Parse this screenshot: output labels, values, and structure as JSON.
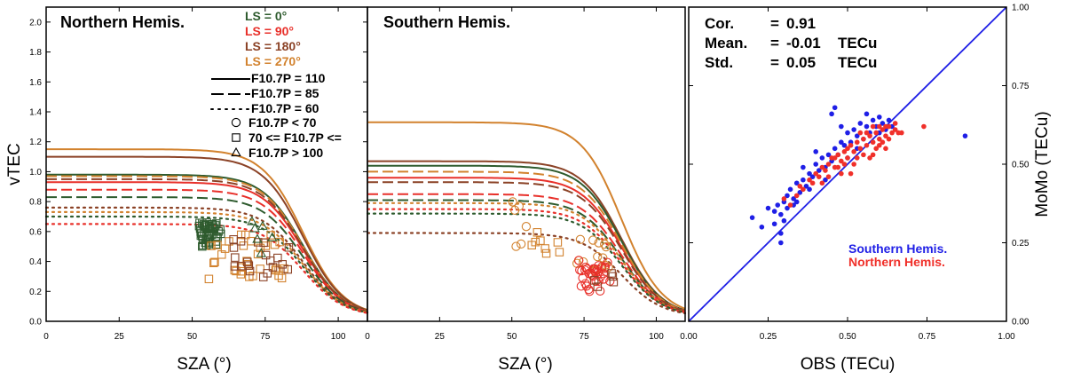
{
  "chart_data": [
    {
      "type": "line",
      "title": "Northern Hemis.",
      "xlabel": "SZA (°)",
      "ylabel": "vTEC",
      "xlim": [
        0,
        110
      ],
      "ylim": [
        0,
        2.1
      ],
      "x_ticks": [
        "0",
        "25",
        "50",
        "75",
        "100"
      ],
      "y_ticks": [
        "0.0",
        "0.2",
        "0.4",
        "0.6",
        "0.8",
        "1.0",
        "1.2",
        "1.4",
        "1.6",
        "1.8",
        "2.0"
      ],
      "legend": {
        "ls_entries": [
          {
            "label": "LS = 0°",
            "color": "#2e5b2e"
          },
          {
            "label": "LS = 90°",
            "color": "#e8302a"
          },
          {
            "label": "LS = 180°",
            "color": "#8b4226"
          },
          {
            "label": "LS = 270°",
            "color": "#d2822e"
          }
        ],
        "line_entries": [
          {
            "label": "F10.7P = 110",
            "dash": "solid"
          },
          {
            "label": "F10.7P = 85",
            "dash": "dashed"
          },
          {
            "label": "F10.7P = 60",
            "dash": "dotted"
          }
        ],
        "marker_entries": [
          {
            "label": "F10.7P < 70",
            "marker": "circle"
          },
          {
            "label": "70 <= F10.7P <=",
            "marker": "square"
          },
          {
            "label": "F10.7P >   100",
            "marker": "triangle"
          }
        ]
      },
      "curves": [
        {
          "ls": 270,
          "f107": 110,
          "v0": 1.15
        },
        {
          "ls": 180,
          "f107": 110,
          "v0": 1.1
        },
        {
          "ls": 0,
          "f107": 110,
          "v0": 0.98
        },
        {
          "ls": 90,
          "f107": 110,
          "v0": 0.93
        },
        {
          "ls": 270,
          "f107": 85,
          "v0": 0.97
        },
        {
          "ls": 180,
          "f107": 85,
          "v0": 0.95
        },
        {
          "ls": 90,
          "f107": 85,
          "v0": 0.88
        },
        {
          "ls": 0,
          "f107": 85,
          "v0": 0.83
        },
        {
          "ls": 180,
          "f107": 60,
          "v0": 0.76
        },
        {
          "ls": 270,
          "f107": 60,
          "v0": 0.73
        },
        {
          "ls": 0,
          "f107": 60,
          "v0": 0.7
        },
        {
          "ls": 90,
          "f107": 60,
          "v0": 0.65
        }
      ],
      "observation_clusters": [
        {
          "ls": 0,
          "marker": "square",
          "sza_range": [
            52,
            60
          ],
          "vtec_range": [
            0.5,
            0.66
          ],
          "count": 45
        },
        {
          "ls": 270,
          "marker": "square",
          "sza_range": [
            55,
            82
          ],
          "vtec_range": [
            0.28,
            0.58
          ],
          "count": 35
        },
        {
          "ls": 180,
          "marker": "square",
          "sza_range": [
            64,
            84
          ],
          "vtec_range": [
            0.28,
            0.55
          ],
          "count": 20
        },
        {
          "ls": 0,
          "marker": "triangle",
          "sza_range": [
            70,
            78
          ],
          "vtec_range": [
            0.45,
            0.7
          ],
          "count": 6
        }
      ]
    },
    {
      "type": "line",
      "title": "Southern Hemis.",
      "xlabel": "SZA (°)",
      "xlim": [
        0,
        110
      ],
      "ylim": [
        0,
        2.1
      ],
      "x_ticks": [
        "0",
        "25",
        "50",
        "75",
        "100"
      ],
      "curves": [
        {
          "ls": 270,
          "f107": 110,
          "v0": 1.33
        },
        {
          "ls": 180,
          "f107": 110,
          "v0": 1.07
        },
        {
          "ls": 0,
          "f107": 110,
          "v0": 1.04
        },
        {
          "ls": 90,
          "f107": 110,
          "v0": 0.96
        },
        {
          "ls": 270,
          "f107": 85,
          "v0": 1.0
        },
        {
          "ls": 180,
          "f107": 85,
          "v0": 0.93
        },
        {
          "ls": 90,
          "f107": 85,
          "v0": 0.85
        },
        {
          "ls": 0,
          "f107": 85,
          "v0": 0.81
        },
        {
          "ls": 270,
          "f107": 60,
          "v0": 0.79
        },
        {
          "ls": 90,
          "f107": 60,
          "v0": 0.75
        },
        {
          "ls": 0,
          "f107": 60,
          "v0": 0.72
        },
        {
          "ls": 180,
          "f107": 60,
          "v0": 0.59
        }
      ],
      "observation_clusters": [
        {
          "ls": 270,
          "marker": "circle",
          "sza_range": [
            50,
            56
          ],
          "vtec_range": [
            0.5,
            0.86
          ],
          "count": 6
        },
        {
          "ls": 270,
          "marker": "square",
          "sza_range": [
            56,
            72
          ],
          "vtec_range": [
            0.42,
            0.6
          ],
          "count": 8
        },
        {
          "ls": 270,
          "marker": "circle",
          "sza_range": [
            72,
            84
          ],
          "vtec_range": [
            0.3,
            0.55
          ],
          "count": 15
        },
        {
          "ls": 90,
          "marker": "circle",
          "sza_range": [
            73,
            84
          ],
          "vtec_range": [
            0.2,
            0.42
          ],
          "count": 35
        },
        {
          "ls": 180,
          "marker": "square",
          "sza_range": [
            78,
            86
          ],
          "vtec_range": [
            0.22,
            0.35
          ],
          "count": 5
        }
      ]
    },
    {
      "type": "scatter",
      "xlabel": "OBS (TECu)",
      "ylabel": "MoMo (TECu)",
      "xlim": [
        0,
        1
      ],
      "ylim": [
        0,
        1
      ],
      "x_ticks": [
        "0.00",
        "0.25",
        "0.50",
        "0.75",
        "1.00"
      ],
      "y_ticks": [
        "0.00",
        "0.25",
        "0.50",
        "0.75",
        "1.00"
      ],
      "stats": [
        {
          "name": "Cor.",
          "eq": "=",
          "value": "0.91",
          "unit": ""
        },
        {
          "name": "Mean.",
          "eq": "=",
          "value": "-0.01",
          "unit": "TECu"
        },
        {
          "name": "Std.",
          "eq": "=",
          "value": "0.05",
          "unit": "TECu"
        }
      ],
      "legend": [
        {
          "label": "Southern Hemis.",
          "color": "#1f1fe6"
        },
        {
          "label": "Northern Hemis.",
          "color": "#f0302a"
        }
      ],
      "identity_line": {
        "color": "#1f1fe6"
      },
      "series": [
        {
          "name": "Southern Hemis.",
          "color": "#1f1fe6",
          "points": [
            [
              0.2,
              0.33
            ],
            [
              0.23,
              0.3
            ],
            [
              0.25,
              0.36
            ],
            [
              0.27,
              0.35
            ],
            [
              0.27,
              0.31
            ],
            [
              0.28,
              0.37
            ],
            [
              0.29,
              0.34
            ],
            [
              0.29,
              0.28
            ],
            [
              0.3,
              0.38
            ],
            [
              0.31,
              0.4
            ],
            [
              0.31,
              0.36
            ],
            [
              0.32,
              0.42
            ],
            [
              0.33,
              0.39
            ],
            [
              0.34,
              0.44
            ],
            [
              0.35,
              0.41
            ],
            [
              0.36,
              0.45
            ],
            [
              0.37,
              0.43
            ],
            [
              0.38,
              0.47
            ],
            [
              0.39,
              0.46
            ],
            [
              0.4,
              0.5
            ],
            [
              0.41,
              0.48
            ],
            [
              0.42,
              0.52
            ],
            [
              0.43,
              0.49
            ],
            [
              0.44,
              0.53
            ],
            [
              0.45,
              0.51
            ],
            [
              0.46,
              0.55
            ],
            [
              0.47,
              0.53
            ],
            [
              0.48,
              0.57
            ],
            [
              0.49,
              0.56
            ],
            [
              0.5,
              0.6
            ],
            [
              0.51,
              0.57
            ],
            [
              0.52,
              0.61
            ],
            [
              0.53,
              0.59
            ],
            [
              0.54,
              0.63
            ],
            [
              0.55,
              0.58
            ],
            [
              0.56,
              0.62
            ],
            [
              0.57,
              0.6
            ],
            [
              0.58,
              0.64
            ],
            [
              0.59,
              0.62
            ],
            [
              0.6,
              0.65
            ],
            [
              0.61,
              0.63
            ],
            [
              0.62,
              0.61
            ],
            [
              0.63,
              0.64
            ],
            [
              0.45,
              0.66
            ],
            [
              0.46,
              0.68
            ],
            [
              0.48,
              0.62
            ],
            [
              0.4,
              0.54
            ],
            [
              0.36,
              0.49
            ],
            [
              0.33,
              0.37
            ],
            [
              0.3,
              0.32
            ],
            [
              0.29,
              0.25
            ],
            [
              0.43,
              0.45
            ],
            [
              0.5,
              0.52
            ],
            [
              0.53,
              0.55
            ],
            [
              0.38,
              0.42
            ],
            [
              0.6,
              0.6
            ],
            [
              0.87,
              0.59
            ],
            [
              0.64,
              0.62
            ],
            [
              0.56,
              0.66
            ],
            [
              0.34,
              0.38
            ]
          ]
        },
        {
          "name": "Northern Hemis.",
          "color": "#f0302a",
          "points": [
            [
              0.3,
              0.39
            ],
            [
              0.32,
              0.37
            ],
            [
              0.34,
              0.4
            ],
            [
              0.35,
              0.43
            ],
            [
              0.36,
              0.42
            ],
            [
              0.38,
              0.45
            ],
            [
              0.39,
              0.44
            ],
            [
              0.4,
              0.47
            ],
            [
              0.41,
              0.46
            ],
            [
              0.42,
              0.49
            ],
            [
              0.43,
              0.48
            ],
            [
              0.44,
              0.5
            ],
            [
              0.45,
              0.52
            ],
            [
              0.46,
              0.49
            ],
            [
              0.47,
              0.53
            ],
            [
              0.48,
              0.51
            ],
            [
              0.49,
              0.54
            ],
            [
              0.5,
              0.52
            ],
            [
              0.51,
              0.56
            ],
            [
              0.52,
              0.54
            ],
            [
              0.53,
              0.57
            ],
            [
              0.54,
              0.55
            ],
            [
              0.55,
              0.58
            ],
            [
              0.56,
              0.56
            ],
            [
              0.57,
              0.59
            ],
            [
              0.58,
              0.57
            ],
            [
              0.59,
              0.6
            ],
            [
              0.6,
              0.58
            ],
            [
              0.61,
              0.61
            ],
            [
              0.62,
              0.59
            ],
            [
              0.63,
              0.62
            ],
            [
              0.64,
              0.6
            ],
            [
              0.65,
              0.61
            ],
            [
              0.66,
              0.6
            ],
            [
              0.67,
              0.6
            ],
            [
              0.58,
              0.62
            ],
            [
              0.6,
              0.62
            ],
            [
              0.62,
              0.62
            ],
            [
              0.55,
              0.53
            ],
            [
              0.52,
              0.5
            ],
            [
              0.5,
              0.55
            ],
            [
              0.48,
              0.47
            ],
            [
              0.46,
              0.52
            ],
            [
              0.44,
              0.46
            ],
            [
              0.42,
              0.44
            ],
            [
              0.57,
              0.52
            ],
            [
              0.59,
              0.55
            ],
            [
              0.61,
              0.57
            ],
            [
              0.63,
              0.58
            ],
            [
              0.54,
              0.6
            ],
            [
              0.74,
              0.62
            ],
            [
              0.65,
              0.63
            ],
            [
              0.56,
              0.6
            ],
            [
              0.53,
              0.52
            ],
            [
              0.49,
              0.5
            ],
            [
              0.51,
              0.47
            ],
            [
              0.47,
              0.49
            ],
            [
              0.62,
              0.55
            ],
            [
              0.58,
              0.53
            ],
            [
              0.6,
              0.56
            ]
          ]
        }
      ]
    }
  ]
}
